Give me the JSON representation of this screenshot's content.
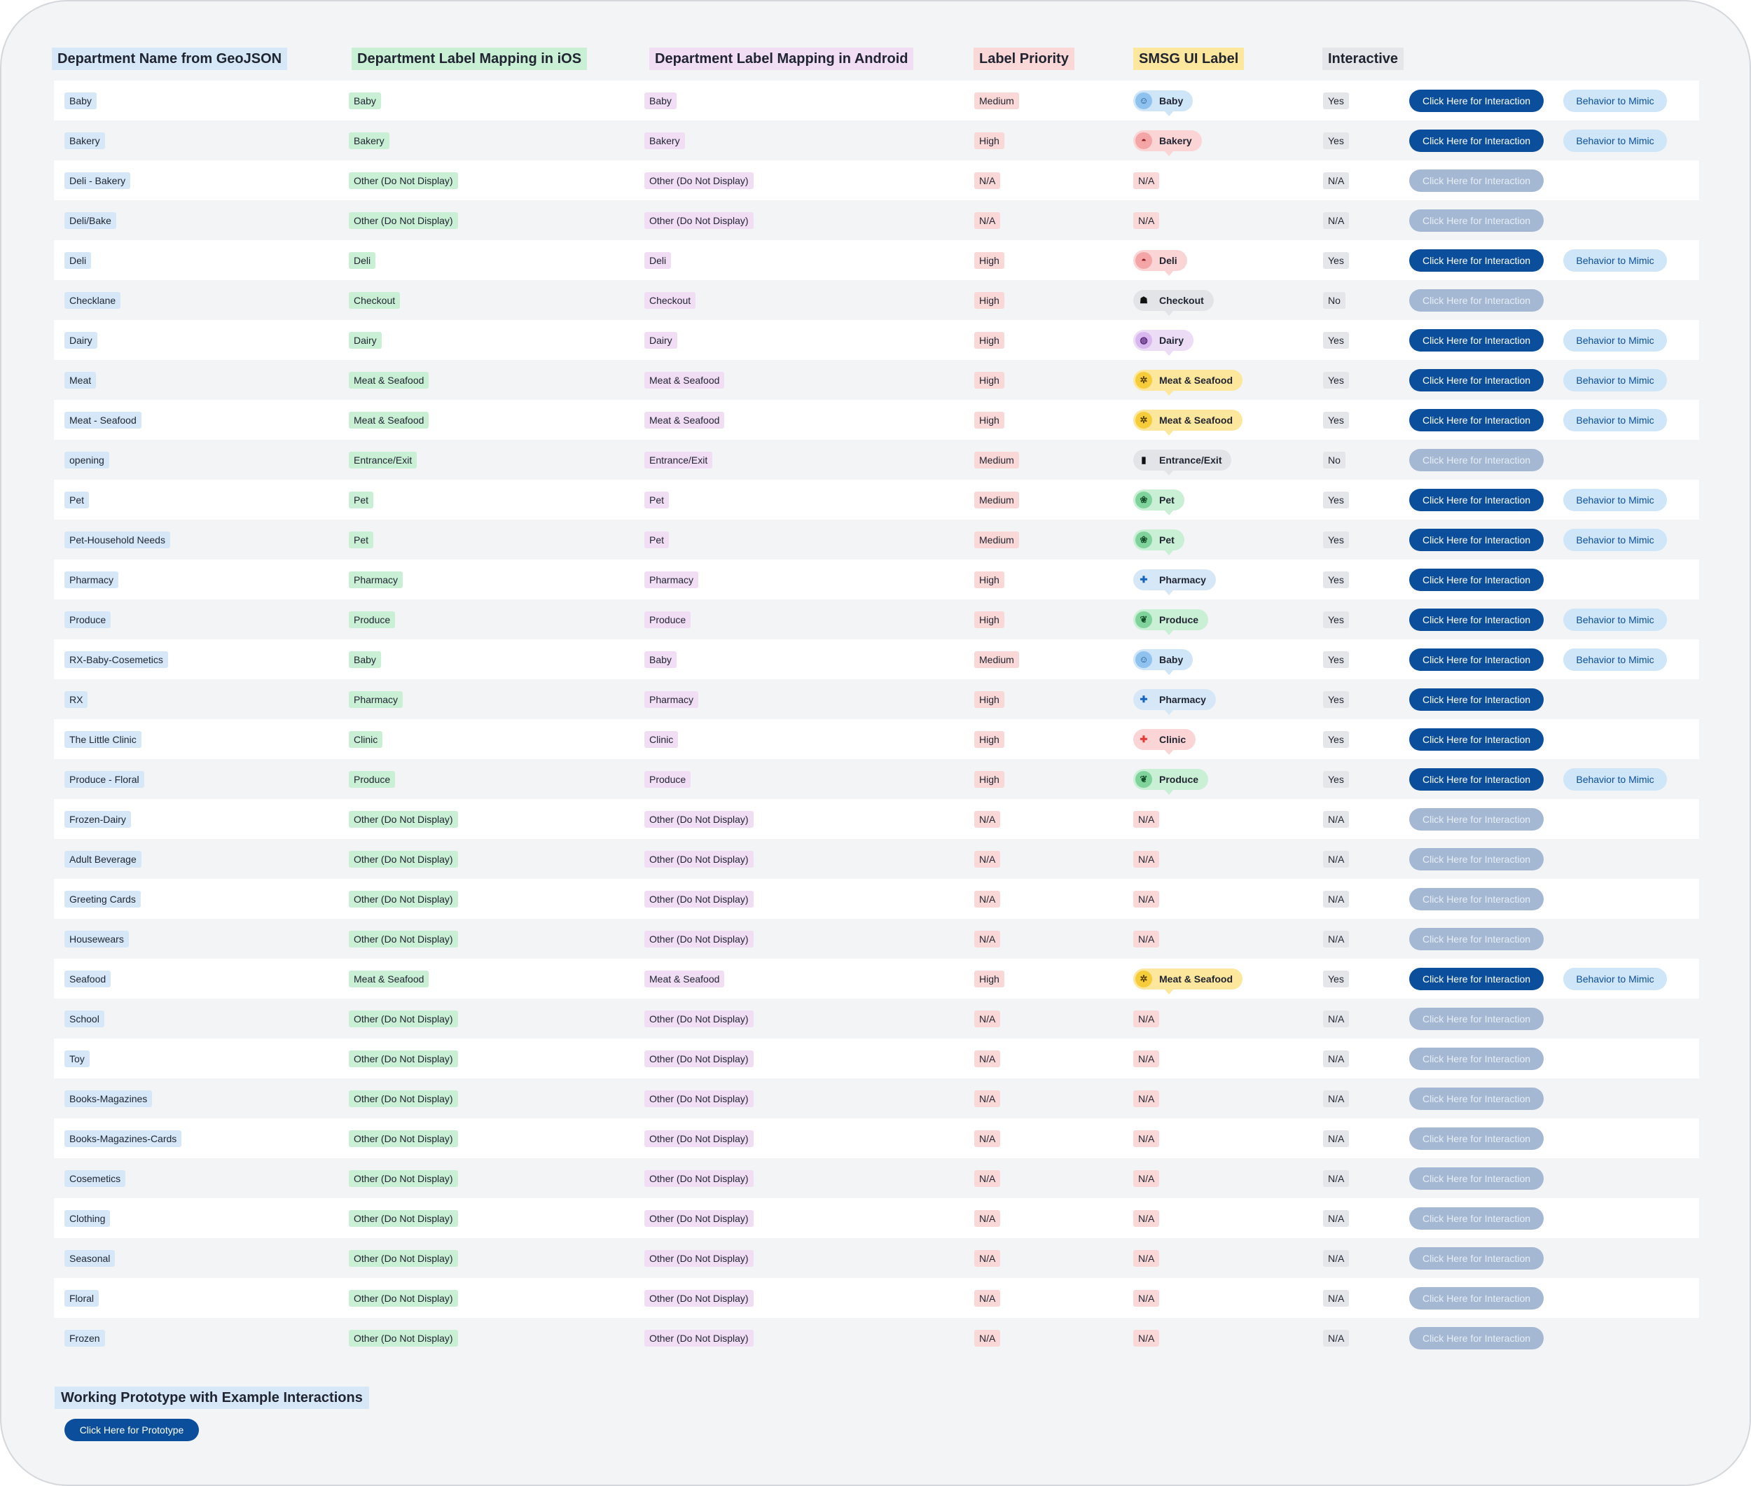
{
  "headers": {
    "geojson": "Department Name from GeoJSON",
    "ios": "Department Label Mapping in iOS",
    "android": "Department Label Mapping in Android",
    "priority": "Label Priority",
    "smsg": "SMSG UI Label",
    "interactive": "Interactive"
  },
  "colors": {
    "header_geojson": "#d6e8f8",
    "header_ios": "#c9efd5",
    "header_android": "#f1ddf4",
    "header_priority": "#fbd8d8",
    "header_smsg": "#fde79c",
    "header_interactive": "#e4e6ea",
    "button_primary": "#0b4f9c",
    "button_disabled": "#a4b8d3"
  },
  "styles": {
    "Baby": {
      "bg": "#cfe5f8",
      "icon_bg": "#8fc2ee",
      "icon_fg": "#1a4f8a",
      "icon": "baby-icon",
      "glyph": "☺"
    },
    "Bakery": {
      "bg": "#fbd5d5",
      "icon_bg": "#f4a6a6",
      "icon_fg": "#8a1f1f",
      "icon": "bakery-icon",
      "glyph": "◓"
    },
    "Deli": {
      "bg": "#fbd5d5",
      "icon_bg": "#f4a6a6",
      "icon_fg": "#8a1f1f",
      "icon": "deli-icon",
      "glyph": "◓"
    },
    "Checkout": {
      "bg": "#e2e4e8",
      "icon_bg": "#e2e4e8",
      "icon_fg": "#111111",
      "icon": "checkout-icon",
      "glyph": "☗"
    },
    "Dairy": {
      "bg": "#ecdcf6",
      "icon_bg": "#d8b7ee",
      "icon_fg": "#5a2a7a",
      "icon": "dairy-icon",
      "glyph": "◍"
    },
    "Meat & Seafood": {
      "bg": "#fde79c",
      "icon_bg": "#f7cc3a",
      "icon_fg": "#5a4300",
      "icon": "meat-seafood-icon",
      "glyph": "✲"
    },
    "Entrance/Exit": {
      "bg": "#e2e4e8",
      "icon_bg": "#e2e4e8",
      "icon_fg": "#111111",
      "icon": "door-icon",
      "glyph": "▮"
    },
    "Pet": {
      "bg": "#c9efd5",
      "icon_bg": "#7fd39b",
      "icon_fg": "#15502a",
      "icon": "pet-icon",
      "glyph": "❀"
    },
    "Pharmacy": {
      "bg": "#d6e8f8",
      "icon_bg": "#d6e8f8",
      "icon_fg": "#1565c0",
      "icon": "pharmacy-cross-icon",
      "glyph": "✚"
    },
    "Produce": {
      "bg": "#c9efd5",
      "icon_bg": "#7fd39b",
      "icon_fg": "#15502a",
      "icon": "produce-icon",
      "glyph": "❦"
    },
    "Clinic": {
      "bg": "#fbd5d5",
      "icon_bg": "#fbd5d5",
      "icon_fg": "#e53935",
      "icon": "clinic-cross-icon",
      "glyph": "✚"
    }
  },
  "rows": [
    {
      "geojson": "Baby",
      "ios": "Baby",
      "android": "Baby",
      "priority": "Medium",
      "smsg": "Baby",
      "interactive": "Yes",
      "action": "Click Here for Interaction",
      "enabled": true,
      "mimic": "Behavior to Mimic"
    },
    {
      "geojson": "Bakery",
      "ios": "Bakery",
      "android": "Bakery",
      "priority": "High",
      "smsg": "Bakery",
      "interactive": "Yes",
      "action": "Click Here for Interaction",
      "enabled": true,
      "mimic": "Behavior to Mimic"
    },
    {
      "geojson": "Deli - Bakery",
      "ios": "Other (Do Not Display)",
      "android": "Other (Do Not Display)",
      "priority": "N/A",
      "smsg": "N/A",
      "interactive": "N/A",
      "action": "Click Here for Interaction",
      "enabled": false,
      "mimic": ""
    },
    {
      "geojson": "Deli/Bake",
      "ios": "Other (Do Not Display)",
      "android": "Other (Do Not Display)",
      "priority": "N/A",
      "smsg": "N/A",
      "interactive": "N/A",
      "action": "Click Here for Interaction",
      "enabled": false,
      "mimic": ""
    },
    {
      "geojson": "Deli",
      "ios": "Deli",
      "android": "Deli",
      "priority": "High",
      "smsg": "Deli",
      "interactive": "Yes",
      "action": "Click Here for Interaction",
      "enabled": true,
      "mimic": "Behavior to Mimic"
    },
    {
      "geojson": "Checklane",
      "ios": "Checkout",
      "android": "Checkout",
      "priority": "High",
      "smsg": "Checkout",
      "interactive": "No",
      "action": "Click Here for Interaction",
      "enabled": false,
      "mimic": ""
    },
    {
      "geojson": "Dairy",
      "ios": "Dairy",
      "android": "Dairy",
      "priority": "High",
      "smsg": "Dairy",
      "interactive": "Yes",
      "action": "Click Here for Interaction",
      "enabled": true,
      "mimic": "Behavior to Mimic"
    },
    {
      "geojson": "Meat",
      "ios": "Meat & Seafood",
      "android": "Meat & Seafood",
      "priority": "High",
      "smsg": "Meat & Seafood",
      "interactive": "Yes",
      "action": "Click Here for Interaction",
      "enabled": true,
      "mimic": "Behavior to Mimic"
    },
    {
      "geojson": "Meat - Seafood",
      "ios": "Meat & Seafood",
      "android": "Meat & Seafood",
      "priority": "High",
      "smsg": "Meat & Seafood",
      "interactive": "Yes",
      "action": "Click Here for Interaction",
      "enabled": true,
      "mimic": "Behavior to Mimic"
    },
    {
      "geojson": "opening",
      "ios": "Entrance/Exit",
      "android": "Entrance/Exit",
      "priority": "Medium",
      "smsg": "Entrance/Exit",
      "interactive": "No",
      "action": "Click Here for Interaction",
      "enabled": false,
      "mimic": ""
    },
    {
      "geojson": "Pet",
      "ios": "Pet",
      "android": "Pet",
      "priority": "Medium",
      "smsg": "Pet",
      "interactive": "Yes",
      "action": "Click Here for Interaction",
      "enabled": true,
      "mimic": "Behavior to Mimic"
    },
    {
      "geojson": "Pet-Household Needs",
      "ios": "Pet",
      "android": "Pet",
      "priority": "Medium",
      "smsg": "Pet",
      "interactive": "Yes",
      "action": "Click Here for Interaction",
      "enabled": true,
      "mimic": "Behavior to Mimic"
    },
    {
      "geojson": "Pharmacy",
      "ios": "Pharmacy",
      "android": "Pharmacy",
      "priority": "High",
      "smsg": "Pharmacy",
      "interactive": "Yes",
      "action": "Click Here for Interaction",
      "enabled": true,
      "mimic": ""
    },
    {
      "geojson": "Produce",
      "ios": "Produce",
      "android": "Produce",
      "priority": "High",
      "smsg": "Produce",
      "interactive": "Yes",
      "action": "Click Here for Interaction",
      "enabled": true,
      "mimic": "Behavior to Mimic"
    },
    {
      "geojson": "RX-Baby-Cosemetics",
      "ios": "Baby",
      "android": "Baby",
      "priority": "Medium",
      "smsg": "Baby",
      "interactive": "Yes",
      "action": "Click Here for Interaction",
      "enabled": true,
      "mimic": "Behavior to Mimic"
    },
    {
      "geojson": "RX",
      "ios": "Pharmacy",
      "android": "Pharmacy",
      "priority": "High",
      "smsg": "Pharmacy",
      "interactive": "Yes",
      "action": "Click Here for Interaction",
      "enabled": true,
      "mimic": ""
    },
    {
      "geojson": "The Little Clinic",
      "ios": "Clinic",
      "android": "Clinic",
      "priority": "High",
      "smsg": "Clinic",
      "interactive": "Yes",
      "action": "Click Here for Interaction",
      "enabled": true,
      "mimic": ""
    },
    {
      "geojson": "Produce - Floral",
      "ios": "Produce",
      "android": "Produce",
      "priority": "High",
      "smsg": "Produce",
      "interactive": "Yes",
      "action": "Click Here for Interaction",
      "enabled": true,
      "mimic": "Behavior to Mimic"
    },
    {
      "geojson": "Frozen-Dairy",
      "ios": "Other (Do Not Display)",
      "android": "Other (Do Not Display)",
      "priority": "N/A",
      "smsg": "N/A",
      "interactive": "N/A",
      "action": "Click Here for Interaction",
      "enabled": false,
      "mimic": ""
    },
    {
      "geojson": "Adult Beverage",
      "ios": "Other (Do Not Display)",
      "android": "Other (Do Not Display)",
      "priority": "N/A",
      "smsg": "N/A",
      "interactive": "N/A",
      "action": "Click Here for Interaction",
      "enabled": false,
      "mimic": ""
    },
    {
      "geojson": "Greeting Cards",
      "ios": "Other (Do Not Display)",
      "android": "Other (Do Not Display)",
      "priority": "N/A",
      "smsg": "N/A",
      "interactive": "N/A",
      "action": "Click Here for Interaction",
      "enabled": false,
      "mimic": ""
    },
    {
      "geojson": "Housewears",
      "ios": "Other (Do Not Display)",
      "android": "Other (Do Not Display)",
      "priority": "N/A",
      "smsg": "N/A",
      "interactive": "N/A",
      "action": "Click Here for Interaction",
      "enabled": false,
      "mimic": ""
    },
    {
      "geojson": "Seafood",
      "ios": "Meat & Seafood",
      "android": "Meat & Seafood",
      "priority": "High",
      "smsg": "Meat & Seafood",
      "interactive": "Yes",
      "action": "Click Here for Interaction",
      "enabled": true,
      "mimic": "Behavior to Mimic"
    },
    {
      "geojson": "School",
      "ios": "Other (Do Not Display)",
      "android": "Other (Do Not Display)",
      "priority": "N/A",
      "smsg": "N/A",
      "interactive": "N/A",
      "action": "Click Here for Interaction",
      "enabled": false,
      "mimic": ""
    },
    {
      "geojson": "Toy",
      "ios": "Other (Do Not Display)",
      "android": "Other (Do Not Display)",
      "priority": "N/A",
      "smsg": "N/A",
      "interactive": "N/A",
      "action": "Click Here for Interaction",
      "enabled": false,
      "mimic": ""
    },
    {
      "geojson": "Books-Magazines",
      "ios": "Other (Do Not Display)",
      "android": "Other (Do Not Display)",
      "priority": "N/A",
      "smsg": "N/A",
      "interactive": "N/A",
      "action": "Click Here for Interaction",
      "enabled": false,
      "mimic": ""
    },
    {
      "geojson": "Books-Magazines-Cards",
      "ios": "Other (Do Not Display)",
      "android": "Other (Do Not Display)",
      "priority": "N/A",
      "smsg": "N/A",
      "interactive": "N/A",
      "action": "Click Here for Interaction",
      "enabled": false,
      "mimic": ""
    },
    {
      "geojson": "Cosemetics",
      "ios": "Other (Do Not Display)",
      "android": "Other (Do Not Display)",
      "priority": "N/A",
      "smsg": "N/A",
      "interactive": "N/A",
      "action": "Click Here for Interaction",
      "enabled": false,
      "mimic": ""
    },
    {
      "geojson": "Clothing",
      "ios": "Other (Do Not Display)",
      "android": "Other (Do Not Display)",
      "priority": "N/A",
      "smsg": "N/A",
      "interactive": "N/A",
      "action": "Click Here for Interaction",
      "enabled": false,
      "mimic": ""
    },
    {
      "geojson": "Seasonal",
      "ios": "Other (Do Not Display)",
      "android": "Other (Do Not Display)",
      "priority": "N/A",
      "smsg": "N/A",
      "interactive": "N/A",
      "action": "Click Here for Interaction",
      "enabled": false,
      "mimic": ""
    },
    {
      "geojson": "Floral",
      "ios": "Other (Do Not Display)",
      "android": "Other (Do Not Display)",
      "priority": "N/A",
      "smsg": "N/A",
      "interactive": "N/A",
      "action": "Click Here for Interaction",
      "enabled": false,
      "mimic": ""
    },
    {
      "geojson": "Frozen",
      "ios": "Other (Do Not Display)",
      "android": "Other (Do Not Display)",
      "priority": "N/A",
      "smsg": "N/A",
      "interactive": "N/A",
      "action": "Click Here for Interaction",
      "enabled": false,
      "mimic": ""
    }
  ],
  "footer": {
    "title": "Working Prototype with Example Interactions",
    "button": "Click Here for Prototype"
  }
}
